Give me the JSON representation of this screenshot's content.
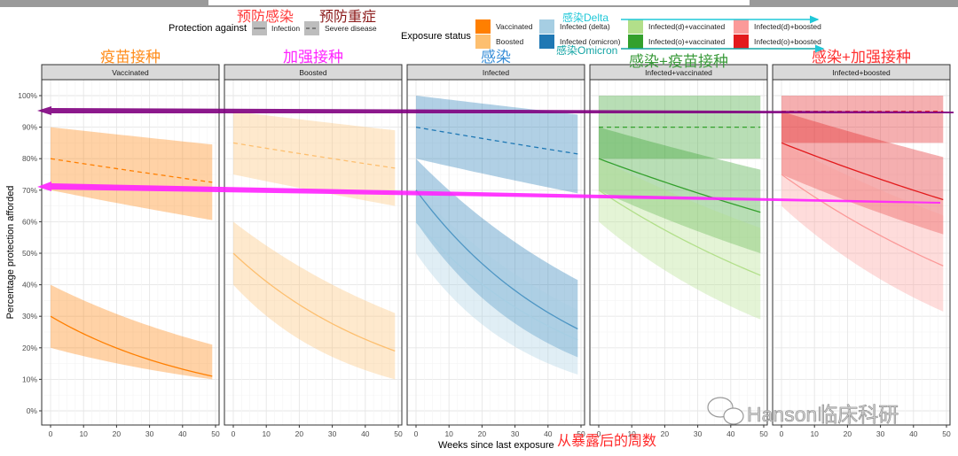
{
  "legend": {
    "protection_title": "Protection against",
    "protection_items": [
      {
        "label": "Infection",
        "linetype": "solid"
      },
      {
        "label": "Severe disease",
        "linetype": "dashed"
      }
    ],
    "protection_annotations": [
      "预防感染",
      "预防重症"
    ],
    "exposure_title": "Exposure status",
    "exposure_items": [
      {
        "label": "Vaccinated",
        "color": "#ff7f00"
      },
      {
        "label": "Boosted",
        "color": "#fdbf6f"
      },
      {
        "label": "Infected (delta)",
        "color": "#a6cee3"
      },
      {
        "label": "Infected (omicron)",
        "color": "#1f78b4"
      },
      {
        "label": "Infected(d)+vaccinated",
        "color": "#b2df8a"
      },
      {
        "label": "Infected(o)+vaccinated",
        "color": "#33a02c"
      },
      {
        "label": "Infected(d)+boosted",
        "color": "#fb9a99"
      },
      {
        "label": "Infected(o)+boosted",
        "color": "#e31a1c"
      }
    ],
    "delta_annotation": "感染Delta",
    "omicron_annotation": "感染Omicron"
  },
  "watermark": "Hanson临床科研",
  "chart_data": {
    "type": "line",
    "xlabel": "Weeks since last exposure",
    "xlabel_annotation": "从暴露后的周数",
    "ylabel": "Percentage protection afforded",
    "xlim": [
      0,
      50
    ],
    "ylim": [
      0,
      100
    ],
    "x_ticks": [
      "0",
      "10",
      "20",
      "30",
      "40",
      "50"
    ],
    "y_ticks": [
      "0%",
      "10%",
      "20%",
      "30%",
      "40%",
      "50%",
      "60%",
      "70%",
      "80%",
      "90%",
      "100%"
    ],
    "grid": true,
    "legend_position": "top",
    "reference_arrows": [
      {
        "level": 95,
        "color": "#800080"
      },
      {
        "level": 71,
        "color": "#ff22ff"
      }
    ],
    "panels": [
      {
        "title": "Vaccinated",
        "annotation": "疫苗接种",
        "annotation_color": "#ff8c1a",
        "series": [
          {
            "name": "Vaccinated",
            "protection": "Severe disease",
            "color": "#ff7f00",
            "weeks": [
              0,
              49
            ],
            "line": [
              80,
              72.5
            ],
            "lower": [
              70,
              60.5
            ],
            "upper": [
              90,
              84.5
            ]
          },
          {
            "name": "Vaccinated",
            "protection": "Infection",
            "color": "#ff7f00",
            "weeks": [
              0,
              49
            ],
            "line": [
              30,
              11
            ],
            "lower": [
              20,
              10
            ],
            "upper": [
              40,
              21
            ],
            "floor": 10
          }
        ]
      },
      {
        "title": "Boosted",
        "annotation": "加强接种",
        "annotation_color": "#ff22ff",
        "series": [
          {
            "name": "Boosted",
            "protection": "Severe disease",
            "color": "#fdbf6f",
            "weeks": [
              0,
              49
            ],
            "line": [
              85,
              77
            ],
            "lower": [
              75,
              65
            ],
            "upper": [
              95,
              89
            ]
          },
          {
            "name": "Boosted",
            "protection": "Infection",
            "color": "#fdbf6f",
            "weeks": [
              0,
              49
            ],
            "line": [
              50,
              19
            ],
            "lower": [
              40,
              10
            ],
            "upper": [
              60,
              31
            ],
            "floor": 10
          }
        ]
      },
      {
        "title": "Infected",
        "annotation": "感染",
        "annotation_color": "#3a8fd8",
        "series": [
          {
            "name": "Infected (omicron)",
            "protection": "Severe disease",
            "color": "#1f78b4",
            "weeks": [
              0,
              49
            ],
            "line": [
              90,
              81.5
            ],
            "lower": [
              80,
              69
            ],
            "upper": [
              100,
              94
            ]
          },
          {
            "name": "Infected (omicron)",
            "protection": "Infection",
            "color": "#1f78b4",
            "weeks": [
              0,
              49
            ],
            "line": [
              70,
              26
            ],
            "lower": [
              60,
              17
            ],
            "upper": [
              80,
              41.5
            ]
          },
          {
            "name": "Infected (delta)",
            "protection": "Infection",
            "color": "#a6cee3",
            "weeks": [
              0,
              49
            ],
            "line": [
              60,
              22.5
            ],
            "lower": [
              50,
              11.5
            ],
            "upper": [
              70,
              32
            ]
          }
        ]
      },
      {
        "title": "Infected+vaccinated",
        "annotation": "感染+疫苗接种",
        "annotation_color": "#3a9a3a",
        "series": [
          {
            "name": "Infected(o)+vaccinated",
            "protection": "Severe disease",
            "color": "#33a02c",
            "weeks": [
              0,
              49
            ],
            "line": [
              90,
              90
            ],
            "lower": [
              80,
              80
            ],
            "upper": [
              100,
              100
            ]
          },
          {
            "name": "Infected(o)+vaccinated",
            "protection": "Infection",
            "color": "#33a02c",
            "weeks": [
              0,
              49
            ],
            "line": [
              80,
              63
            ],
            "lower": [
              70,
              50
            ],
            "upper": [
              90,
              76.5
            ]
          },
          {
            "name": "Infected(d)+vaccinated",
            "protection": "Infection",
            "color": "#b2df8a",
            "weeks": [
              0,
              49
            ],
            "line": [
              70,
              43
            ],
            "lower": [
              60,
              29
            ],
            "upper": [
              80,
              58
            ]
          }
        ]
      },
      {
        "title": "Infected+boosted",
        "annotation": "感染+加强接种",
        "annotation_color": "#ff3030",
        "series": [
          {
            "name": "Infected(o)+boosted",
            "protection": "Severe disease",
            "color": "#e31a1c",
            "weeks": [
              0,
              49
            ],
            "line": [
              95,
              95
            ],
            "lower": [
              85,
              85
            ],
            "upper": [
              100,
              100
            ]
          },
          {
            "name": "Infected(o)+boosted",
            "protection": "Infection",
            "color": "#e31a1c",
            "weeks": [
              0,
              49
            ],
            "line": [
              85,
              67
            ],
            "lower": [
              75,
              56
            ],
            "upper": [
              95,
              80.5
            ]
          },
          {
            "name": "Infected(d)+boosted",
            "protection": "Infection",
            "color": "#fb9a99",
            "weeks": [
              0,
              49
            ],
            "line": [
              75,
              46
            ],
            "lower": [
              65,
              31.5
            ],
            "upper": [
              85,
              62
            ]
          }
        ]
      }
    ]
  }
}
